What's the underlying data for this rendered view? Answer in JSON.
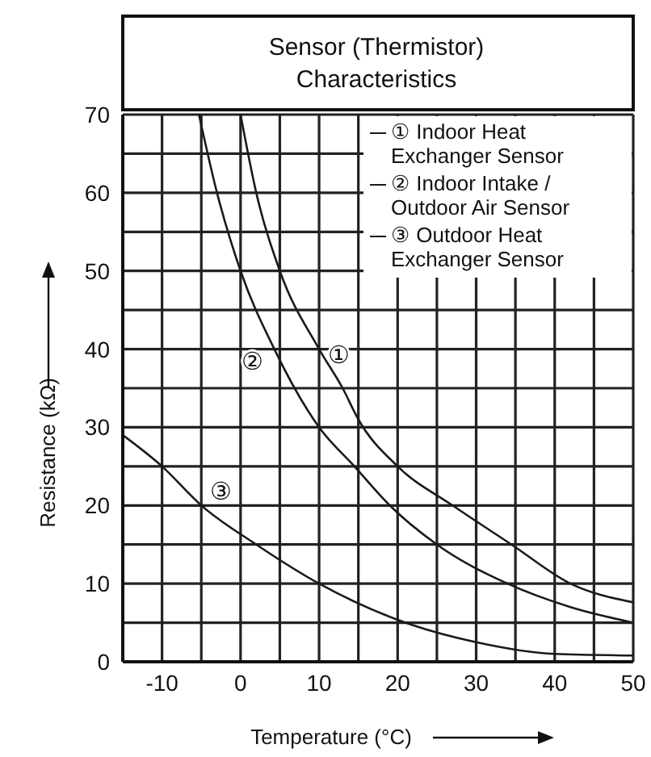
{
  "chart_data": {
    "type": "line",
    "title": "Sensor (Thermistor)\nCharacteristics",
    "xlabel": "Temperature (°C)",
    "ylabel": "Resistance (kΩ)",
    "series": [
      {
        "name": "① Indoor Heat Exchanger Sensor",
        "color": "#1a1a1a",
        "x": [
          0,
          2,
          5,
          10,
          13,
          15,
          20,
          27,
          34.5,
          42,
          50
        ],
        "values": [
          70,
          60,
          50,
          40,
          35,
          31,
          25,
          20,
          15,
          10,
          7.6
        ]
      },
      {
        "name": "② Indoor Intake / Outdoor Air Sensor",
        "color": "#1a1a1a",
        "x": [
          -5.3,
          -3,
          0,
          4.3,
          10,
          14.5,
          19,
          25,
          34,
          42,
          50
        ],
        "values": [
          70,
          60,
          50,
          40,
          30,
          25,
          20,
          15,
          10,
          7,
          5
        ]
      },
      {
        "name": "③ Outdoor Heat Exchanger Sensor",
        "color": "#1a1a1a",
        "x": [
          -15,
          -10,
          -5,
          2,
          10,
          21,
          30,
          40,
          50
        ],
        "values": [
          29,
          25,
          20,
          15,
          10,
          5,
          2.5,
          1,
          0.8
        ]
      }
    ],
    "annotations": [
      {
        "text": "①",
        "x": 10,
        "y": 40
      },
      {
        "text": "②",
        "x": 4.3,
        "y": 40
      },
      {
        "text": "③",
        "x": -5,
        "y": 20
      }
    ],
    "xlim": [
      -15,
      50
    ],
    "ylim": [
      0,
      70
    ],
    "xticks": [
      {
        "value": -15,
        "label": null
      },
      -10,
      {
        "value": -5,
        "label": null
      },
      0,
      {
        "value": 5,
        "label": null
      },
      10,
      {
        "value": 15,
        "label": null
      },
      20,
      {
        "value": 25,
        "label": null
      },
      30,
      {
        "value": 35,
        "label": null
      },
      40,
      {
        "value": 45,
        "label": null
      },
      50
    ],
    "yticks": [
      0,
      {
        "value": 5,
        "label": null
      },
      10,
      {
        "value": 15,
        "label": null
      },
      20,
      {
        "value": 25,
        "label": null
      },
      30,
      {
        "value": 35,
        "label": null
      },
      40,
      {
        "value": 45,
        "label": null
      },
      50,
      {
        "value": 55,
        "label": null
      },
      60,
      {
        "value": 65,
        "label": null
      },
      70
    ],
    "grid": true,
    "legend": "top right",
    "marker": "none",
    "line_style": "solid"
  }
}
